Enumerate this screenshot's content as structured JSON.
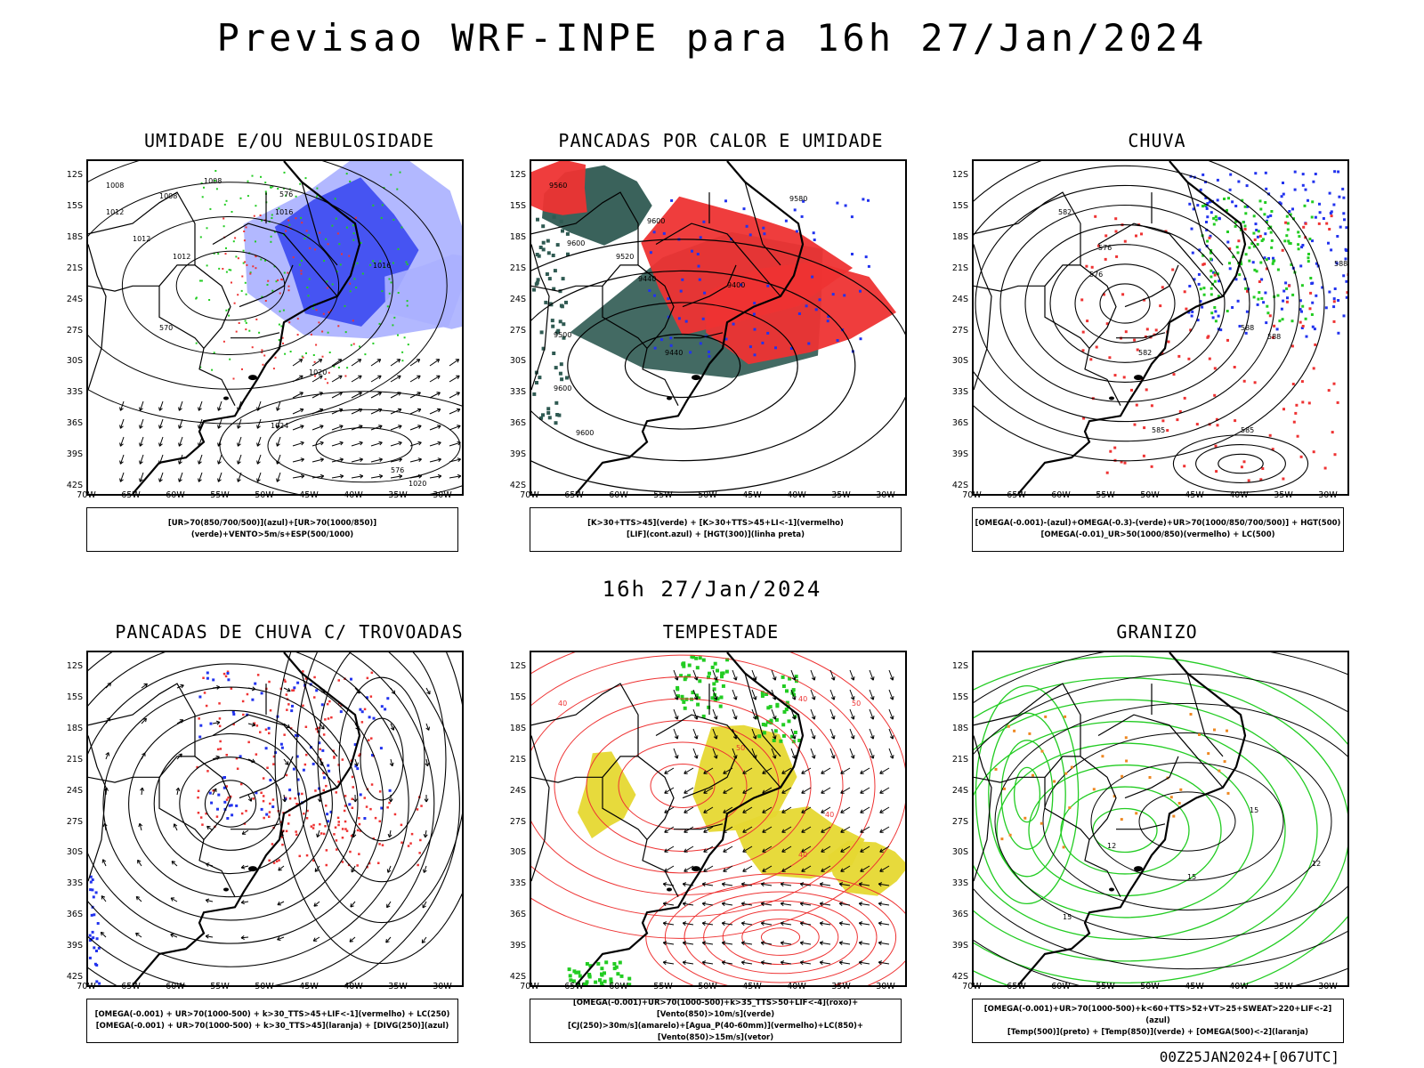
{
  "header": {
    "title": "Previsao WRF-INPE  para 16h 27/Jan/2024",
    "mid_date": "16h 27/Jan/2024",
    "run_label": "00Z25JAN2024+[067UTC]"
  },
  "axes": {
    "y_ticks": [
      "12S",
      "15S",
      "18S",
      "21S",
      "24S",
      "27S",
      "30S",
      "33S",
      "36S",
      "39S",
      "42S"
    ],
    "x_ticks": [
      "70W",
      "65W",
      "60W",
      "55W",
      "50W",
      "45W",
      "40W",
      "35W",
      "30W"
    ]
  },
  "colors": {
    "blue": "#2233ee",
    "light_blue": "#aab0ff",
    "green": "#22cc22",
    "red": "#ee3333",
    "dark_teal": "#2f5a52",
    "yellow": "#e6d832",
    "orange": "#ee8822",
    "purple": "#aa44cc"
  },
  "panels": [
    {
      "title": "UMIDADE E/OU NEBULOSIDADE",
      "legend": [
        "[UR>70(850/700/500)](azul)+[UR>70(1000/850)](verde)+VENTO>5m/s+ESP(500/1000)"
      ],
      "contour_labels": [
        "1008",
        "1008",
        "1008",
        "1012",
        "1012",
        "1012",
        "1016",
        "1016",
        "1020",
        "1024",
        "1020",
        "576",
        "570",
        "576"
      ]
    },
    {
      "title": "PANCADAS POR CALOR E UMIDADE",
      "legend": [
        "[K>30+TTS>45](verde) + [K>30+TTS>45+LI<-1](vermelho)",
        "[LIF](cont.azul) + [HGT(300)](linha preta)"
      ],
      "contour_labels": [
        "9560",
        "9580",
        "9600",
        "9600",
        "9520",
        "9440",
        "9400",
        "9500",
        "9440",
        "9600",
        "9600"
      ]
    },
    {
      "title": "CHUVA",
      "legend": [
        "[OMEGA(-0.001)-(azul)+OMEGA(-0.3)-(verde)+UR>70(1000/850/700/500)] + HGT(500)",
        "[OMEGA(-0.01)_UR>50(1000/850)(vermelho) + LC(500)"
      ],
      "contour_labels": [
        "582",
        "576",
        "576",
        "582",
        "585",
        "585",
        "588",
        "588",
        "588"
      ]
    },
    {
      "title": "PANCADAS DE CHUVA C/ TROVOADAS",
      "legend": [
        "[OMEGA(-0.001) + UR>70(1000-500) + k>30_TTS>45+LIF<-1](vermelho) + LC(250)",
        "[OMEGA(-0.001) + UR>70(1000-500) + k>30_TTS>45](laranja) + [DIVG(250)](azul)"
      ],
      "contour_labels": []
    },
    {
      "title": "TEMPESTADE",
      "legend": [
        "[OMEGA(-0.001)+UR>70(1000-500)+k>35_TTS>50+LIF<-4](roxo)+[Vento(850)>10m/s](verde)",
        "[CJ(250)>30m/s](amarelo)+[Agua_P(40-60mm)](vermelho)+LC(850)+[Vento(850)>15m/s](vetor)"
      ],
      "contour_labels": [
        "40",
        "50",
        "40",
        "40",
        "50",
        "40"
      ]
    },
    {
      "title": "GRANIZO",
      "legend": [
        "[OMEGA(-0.001)+UR>70(1000-500)+k<60+TTS>52+VT>25+SWEAT>220+LIF<-2](azul)",
        "[Temp(500)](preto) + [Temp(850)](verde) + [OMEGA(500)<-2](laranja)"
      ],
      "contour_labels": [
        "15",
        "12",
        "12",
        "15",
        "15"
      ]
    }
  ]
}
